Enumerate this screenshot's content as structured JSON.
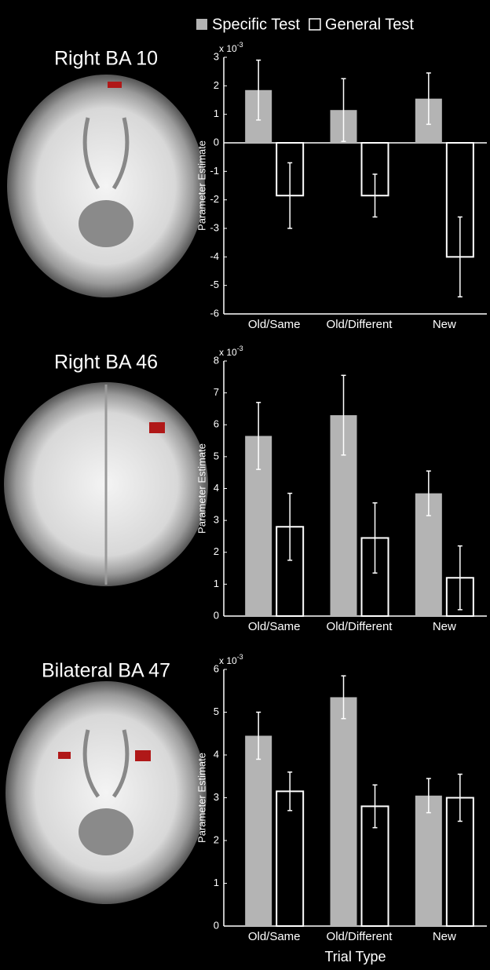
{
  "chart_data": [
    {
      "type": "bar",
      "title": "Right BA 10",
      "ylabel": "Parameter Estimate",
      "y_multiplier": "x 10",
      "y_exponent": "-3",
      "categories": [
        "Old/Same",
        "Old/Different",
        "New"
      ],
      "series": [
        {
          "name": "Specific Test",
          "color": "#b4b4b4",
          "values": [
            1.85,
            1.15,
            1.55
          ],
          "errors": [
            1.05,
            1.1,
            0.9
          ]
        },
        {
          "name": "General Test",
          "color": "#000000",
          "values": [
            -1.85,
            -1.85,
            -4.0
          ],
          "errors": [
            1.15,
            0.75,
            1.4
          ]
        }
      ],
      "ylim": [
        -6,
        3
      ],
      "yticks": [
        -6,
        -5,
        -4,
        -3,
        -2,
        -1,
        0,
        1,
        2,
        3
      ]
    },
    {
      "type": "bar",
      "title": "Right BA 46",
      "ylabel": "Parameter Estimate",
      "y_multiplier": "x 10",
      "y_exponent": "-3",
      "categories": [
        "Old/Same",
        "Old/Different",
        "New"
      ],
      "series": [
        {
          "color": "#b4b4b4",
          "values": [
            5.65,
            6.3,
            3.85
          ],
          "errors": [
            1.05,
            1.25,
            0.7
          ]
        },
        {
          "color": "#000000",
          "values": [
            2.8,
            2.45,
            1.2
          ],
          "errors": [
            1.05,
            1.1,
            1.0
          ]
        }
      ],
      "ylim": [
        0,
        8
      ],
      "yticks": [
        0,
        1,
        2,
        3,
        4,
        5,
        6,
        7,
        8
      ]
    },
    {
      "type": "bar",
      "title": "Bilateral BA 47",
      "ylabel": "Parameter Estimate",
      "y_multiplier": "x 10",
      "y_exponent": "-3",
      "xlabel": "Trial Type",
      "categories": [
        "Old/Same",
        "Old/Different",
        "New"
      ],
      "series": [
        {
          "color": "#b4b4b4",
          "values": [
            4.45,
            5.35,
            3.05
          ],
          "errors": [
            0.55,
            0.5,
            0.4
          ]
        },
        {
          "color": "#000000",
          "values": [
            3.15,
            2.8,
            3.0
          ],
          "errors": [
            0.45,
            0.5,
            0.55
          ]
        }
      ],
      "ylim": [
        0,
        6
      ],
      "yticks": [
        0,
        1,
        2,
        3,
        4,
        5,
        6
      ]
    }
  ]
}
